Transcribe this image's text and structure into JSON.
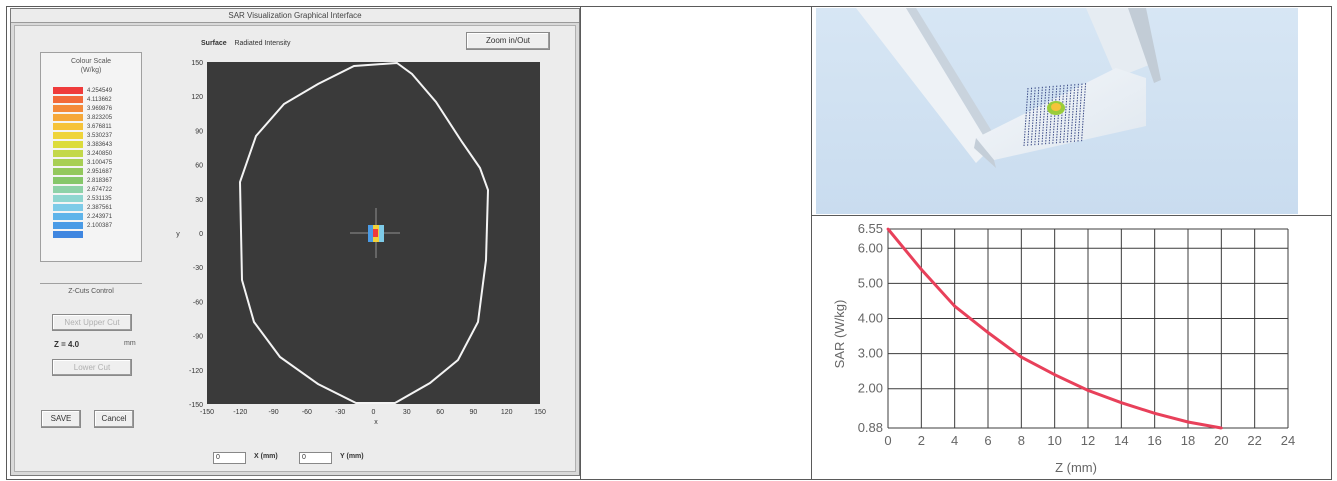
{
  "gui": {
    "title": "SAR Visualization Graphical Interface",
    "zoom_button": "Zoom in/Out",
    "plot_header_label": "Surface",
    "plot_header_value": "Radiated Intensity",
    "color_scale": {
      "title_line1": "Colour Scale",
      "title_line2": "(W/kg)",
      "colors": [
        "#ef3b3b",
        "#f26a3a",
        "#f48a3a",
        "#f6a83a",
        "#f6c33a",
        "#efd43a",
        "#dcdc3c",
        "#c3d84a",
        "#a8cf54",
        "#93c85c",
        "#86c76a",
        "#8ed2a8",
        "#8fd6d0",
        "#7ecbe8",
        "#5fb4ea",
        "#4a9be6",
        "#3f86e0"
      ],
      "labels": [
        "4.254549",
        "4.113662",
        "3.969876",
        "3.823205",
        "3.676811",
        "3.530237",
        "3.383643",
        "3.240850",
        "3.100475",
        "2.951687",
        "2.818367",
        "2.674722",
        "2.531135",
        "2.387561",
        "2.243971",
        "2.100387",
        ""
      ]
    },
    "zcut": {
      "title": "Z-Cuts Control",
      "up_button": "Next Upper Cut",
      "z_label": "Z =  4.0",
      "z_unit": "mm",
      "down_button": "Lower Cut"
    },
    "save_button": "SAVE",
    "cancel_button": "Cancel",
    "plot": {
      "background": "#3a3a3a",
      "y_ticks": [
        "150",
        "120",
        "90",
        "60",
        "30",
        "0",
        "-30",
        "-60",
        "-90",
        "-120",
        "-150"
      ],
      "x_ticks": [
        "-150",
        "-120",
        "-90",
        "-60",
        "-30",
        "0",
        "30",
        "60",
        "90",
        "120",
        "150"
      ],
      "x_axis_label": "x",
      "y_axis_label": "y"
    },
    "x_input": "0",
    "x_label": "X (mm)",
    "y_input": "0",
    "y_label": "Y (mm)"
  },
  "chart_data": {
    "type": "line",
    "xlabel": "Z (mm)",
    "ylabel": "SAR (W/kg)",
    "xlim": [
      0,
      24
    ],
    "ylim": [
      0.88,
      6.55
    ],
    "x_ticks": [
      0,
      2,
      4,
      6,
      8,
      10,
      12,
      14,
      16,
      18,
      20,
      22,
      24
    ],
    "y_ticks": [
      "0.88",
      "2.00",
      "3.00",
      "4.00",
      "5.00",
      "6.00",
      "6.55"
    ],
    "y_tick_values": [
      0.88,
      2.0,
      3.0,
      4.0,
      5.0,
      6.0,
      6.55
    ],
    "series": [
      {
        "color": "#e8405a",
        "x": [
          0,
          2,
          4,
          6,
          8,
          10,
          12,
          14,
          16,
          18,
          20
        ],
        "y": [
          6.55,
          5.4,
          4.35,
          3.6,
          2.9,
          2.4,
          1.95,
          1.6,
          1.3,
          1.05,
          0.88
        ]
      }
    ],
    "grid": true
  }
}
